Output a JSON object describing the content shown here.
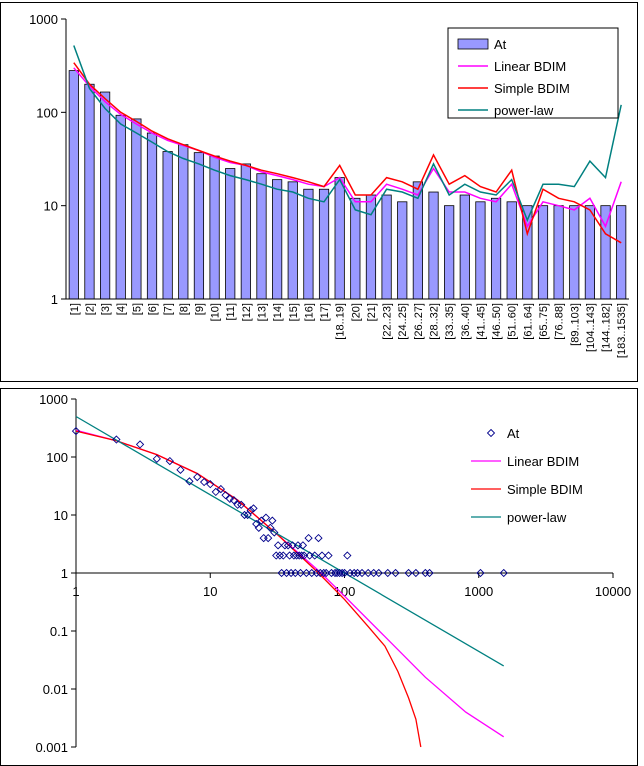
{
  "chart_data": [
    {
      "type": "bar",
      "title": "",
      "xlabel": "",
      "ylabel": "",
      "y_scale": "log",
      "ylim": [
        1,
        1000
      ],
      "y_ticks": [
        "1",
        "10",
        "100",
        "1000"
      ],
      "legend_position": "top-right",
      "categories": [
        "[1]",
        "[2]",
        "[3]",
        "[4]",
        "[5]",
        "[6]",
        "[7]",
        "[8]",
        "[9]",
        "[10]",
        "[11]",
        "[12]",
        "[13]",
        "[14]",
        "[15]",
        "[16]",
        "[17]",
        "[18..19]",
        "[20]",
        "[21]",
        "[22..23]",
        "[24..25]",
        "[26..27]",
        "[28..32]",
        "[33..35]",
        "[36..40]",
        "[41..45]",
        "[46..50]",
        "[51..60]",
        "[61..64]",
        "[65..75]",
        "[76..88]",
        "[89..103]",
        "[104..143]",
        "[144..182]",
        "[183..1535]"
      ],
      "series": [
        {
          "name": "At",
          "kind": "bar",
          "color": "#9999ff",
          "values": [
            280,
            200,
            165,
            93,
            85,
            60,
            38,
            45,
            37,
            34,
            25,
            28,
            22,
            19,
            18,
            15,
            15,
            20,
            12,
            13,
            13,
            11,
            18,
            14,
            10,
            13,
            11,
            12,
            11,
            10,
            10,
            10,
            10,
            10,
            10,
            10
          ]
        },
        {
          "name": "Linear BDIM",
          "kind": "line",
          "color": "#ff00ff",
          "values": [
            300,
            190,
            130,
            95,
            75,
            60,
            50,
            44,
            39,
            33,
            29,
            27,
            23,
            21,
            19,
            17,
            16,
            20,
            11,
            11,
            17,
            15,
            13,
            25,
            14,
            14,
            12,
            11,
            17,
            6,
            11,
            10,
            9,
            12,
            6,
            18
          ]
        },
        {
          "name": "Simple BDIM",
          "kind": "line",
          "color": "#ff0000",
          "values": [
            340,
            200,
            140,
            100,
            80,
            63,
            52,
            45,
            39,
            34,
            30,
            27,
            24,
            22,
            20,
            18,
            16,
            27,
            13,
            13,
            20,
            18,
            15,
            35,
            17,
            21,
            16,
            14,
            24,
            5,
            15,
            12,
            11,
            9,
            5,
            4
          ]
        },
        {
          "name": "power-law",
          "kind": "line",
          "color": "#008080",
          "values": [
            520,
            180,
            110,
            75,
            60,
            48,
            38,
            32,
            28,
            24,
            21,
            19,
            17,
            15,
            14,
            12,
            11,
            19,
            9,
            8,
            15,
            14,
            12,
            28,
            13,
            17,
            14,
            13,
            19,
            7,
            17,
            17,
            16,
            30,
            20,
            120
          ]
        }
      ]
    },
    {
      "type": "scatter",
      "title": "",
      "xlabel": "",
      "ylabel": "",
      "x_scale": "log",
      "y_scale": "log",
      "xlim": [
        1,
        10000
      ],
      "ylim": [
        0.001,
        1000
      ],
      "x_ticks": [
        "1",
        "10",
        "100",
        "1000",
        "10000"
      ],
      "y_ticks": [
        "1000",
        "100",
        "10",
        "1",
        "0.1",
        "0.01",
        "0.001"
      ],
      "legend_position": "top-right",
      "series": [
        {
          "name": "At",
          "kind": "scatter",
          "color": "#00008b",
          "points": [
            [
              1,
              280
            ],
            [
              2,
              200
            ],
            [
              3,
              165
            ],
            [
              4,
              93
            ],
            [
              5,
              85
            ],
            [
              6,
              60
            ],
            [
              7,
              38
            ],
            [
              8,
              45
            ],
            [
              9,
              37
            ],
            [
              10,
              34
            ],
            [
              11,
              25
            ],
            [
              12,
              28
            ],
            [
              13,
              22
            ],
            [
              14,
              19
            ],
            [
              15,
              18
            ],
            [
              16,
              15
            ],
            [
              17,
              15
            ],
            [
              18,
              10
            ],
            [
              19,
              10
            ],
            [
              20,
              12
            ],
            [
              21,
              13
            ],
            [
              22,
              7
            ],
            [
              23,
              6
            ],
            [
              24,
              8
            ],
            [
              25,
              4
            ],
            [
              26,
              9
            ],
            [
              27,
              4
            ],
            [
              28,
              6
            ],
            [
              29,
              8
            ],
            [
              30,
              5
            ],
            [
              31,
              2
            ],
            [
              32,
              3
            ],
            [
              33,
              2
            ],
            [
              34,
              1
            ],
            [
              35,
              2
            ],
            [
              36,
              3
            ],
            [
              37,
              1
            ],
            [
              38,
              3
            ],
            [
              39,
              2
            ],
            [
              40,
              1
            ],
            [
              41,
              3
            ],
            [
              42,
              2
            ],
            [
              43,
              1
            ],
            [
              44,
              2
            ],
            [
              45,
              3
            ],
            [
              46,
              2
            ],
            [
              47,
              1
            ],
            [
              48,
              2
            ],
            [
              49,
              3
            ],
            [
              50,
              2
            ],
            [
              52,
              1
            ],
            [
              54,
              4
            ],
            [
              55,
              2
            ],
            [
              57,
              1
            ],
            [
              60,
              2
            ],
            [
              62,
              1
            ],
            [
              64,
              4
            ],
            [
              66,
              1
            ],
            [
              68,
              2
            ],
            [
              70,
              1
            ],
            [
              73,
              1
            ],
            [
              76,
              2
            ],
            [
              80,
              1
            ],
            [
              85,
              1
            ],
            [
              88,
              1
            ],
            [
              92,
              1
            ],
            [
              96,
              1
            ],
            [
              100,
              1
            ],
            [
              105,
              2
            ],
            [
              110,
              1
            ],
            [
              118,
              1
            ],
            [
              125,
              1
            ],
            [
              135,
              1
            ],
            [
              150,
              1
            ],
            [
              165,
              1
            ],
            [
              180,
              1
            ],
            [
              210,
              1
            ],
            [
              240,
              1
            ],
            [
              300,
              1
            ],
            [
              340,
              1
            ],
            [
              400,
              1
            ],
            [
              430,
              1
            ],
            [
              1030,
              1
            ],
            [
              1535,
              1
            ]
          ]
        },
        {
          "name": "Linear BDIM",
          "kind": "line",
          "color": "#ff00ff",
          "points": [
            [
              1,
              290
            ],
            [
              2,
              190
            ],
            [
              4,
              110
            ],
            [
              8,
              52
            ],
            [
              16,
              18
            ],
            [
              32,
              4.5
            ],
            [
              64,
              1.1
            ],
            [
              100,
              0.4
            ],
            [
              200,
              0.08
            ],
            [
              400,
              0.016
            ],
            [
              800,
              0.004
            ],
            [
              1535,
              0.0015
            ]
          ]
        },
        {
          "name": "Simple BDIM",
          "kind": "line",
          "color": "#ff0000",
          "points": [
            [
              1,
              280
            ],
            [
              2,
              190
            ],
            [
              4,
              110
            ],
            [
              8,
              52
            ],
            [
              16,
              18
            ],
            [
              32,
              4.5
            ],
            [
              64,
              1
            ],
            [
              100,
              0.35
            ],
            [
              150,
              0.12
            ],
            [
              200,
              0.055
            ],
            [
              250,
              0.02
            ],
            [
              300,
              0.007
            ],
            [
              340,
              0.003
            ],
            [
              370,
              0.001
            ]
          ]
        },
        {
          "name": "power-law",
          "kind": "line",
          "color": "#008080",
          "points": [
            [
              1,
              500
            ],
            [
              1535,
              0.025
            ]
          ]
        }
      ]
    }
  ]
}
